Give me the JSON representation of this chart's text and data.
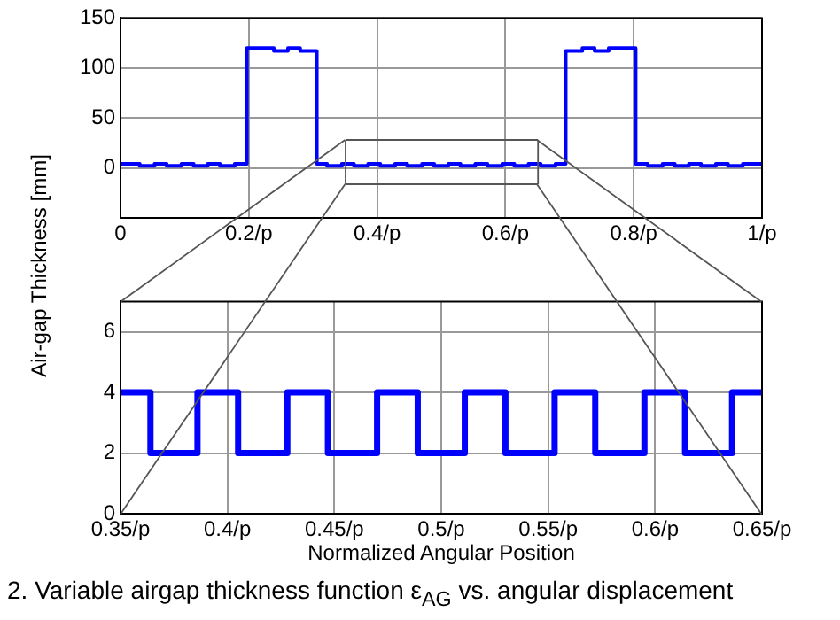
{
  "chart_data": [
    {
      "type": "step",
      "x": [
        0,
        0.03,
        0.053,
        0.072,
        0.095,
        0.114,
        0.136,
        0.155,
        0.178,
        0.197,
        0.239,
        0.261,
        0.28,
        0.306,
        0.322,
        0.345,
        0.364,
        0.386,
        0.405,
        0.428,
        0.447,
        0.47,
        0.489,
        0.511,
        0.53,
        0.553,
        0.572,
        0.595,
        0.614,
        0.636,
        0.655,
        0.678,
        0.694,
        0.72,
        0.739,
        0.761,
        0.803,
        0.822,
        0.845,
        0.864,
        0.886,
        0.905,
        0.928,
        0.947,
        0.97,
        1
      ],
      "series": [
        {
          "color": "#0000ff",
          "values": [
            4,
            2,
            4,
            2,
            4,
            2,
            4,
            2,
            4,
            120,
            117,
            120,
            117,
            4,
            2,
            4,
            2,
            4,
            2,
            4,
            2,
            4,
            2,
            4,
            2,
            4,
            2,
            4,
            2,
            4,
            2,
            4,
            117,
            120,
            117,
            120,
            4,
            2,
            4,
            2,
            4,
            2,
            4,
            2,
            4,
            4
          ]
        }
      ],
      "xlim": [
        0,
        1
      ],
      "xticks": [
        0,
        {
          "value": 0.2,
          "label": "0.2/p"
        },
        {
          "value": 0.4,
          "label": "0.4/p"
        },
        {
          "value": 0.6,
          "label": "0.6/p"
        },
        {
          "value": 0.8,
          "label": "0.8/p"
        },
        {
          "value": 1,
          "label": "1/p"
        }
      ],
      "ylim": [
        -50,
        150
      ],
      "yticks": [
        0,
        50,
        100,
        150
      ],
      "grid": true,
      "legend": false
    },
    {
      "type": "step",
      "x": [
        0.35,
        0.364,
        0.386,
        0.405,
        0.428,
        0.447,
        0.47,
        0.489,
        0.511,
        0.53,
        0.553,
        0.572,
        0.595,
        0.614,
        0.636,
        0.65
      ],
      "series": [
        {
          "color": "#0000ff",
          "values": [
            4,
            2,
            4,
            2,
            4,
            2,
            4,
            2,
            4,
            2,
            4,
            2,
            4,
            2,
            4,
            4
          ]
        }
      ],
      "xlim": [
        0.35,
        0.65
      ],
      "xticks": [
        {
          "value": 0.35,
          "label": "0.35/p"
        },
        {
          "value": 0.4,
          "label": "0.4/p"
        },
        {
          "value": 0.45,
          "label": "0.45/p"
        },
        {
          "value": 0.5,
          "label": "0.5/p"
        },
        {
          "value": 0.55,
          "label": "0.55/p"
        },
        {
          "value": 0.6,
          "label": "0.6/p"
        },
        {
          "value": 0.65,
          "label": "0.65/p"
        }
      ],
      "ylim": [
        0,
        7
      ],
      "yticks": [
        0,
        2,
        4,
        6
      ],
      "grid": true,
      "legend": false,
      "xlabel": "Normalized Angular Position",
      "ylabel": "Air-gap Thickness [mm]",
      "annotations": [
        "2.  Variable airgap thickness function ε$_{AG}$ vs. angular displacement"
      ]
    }
  ]
}
